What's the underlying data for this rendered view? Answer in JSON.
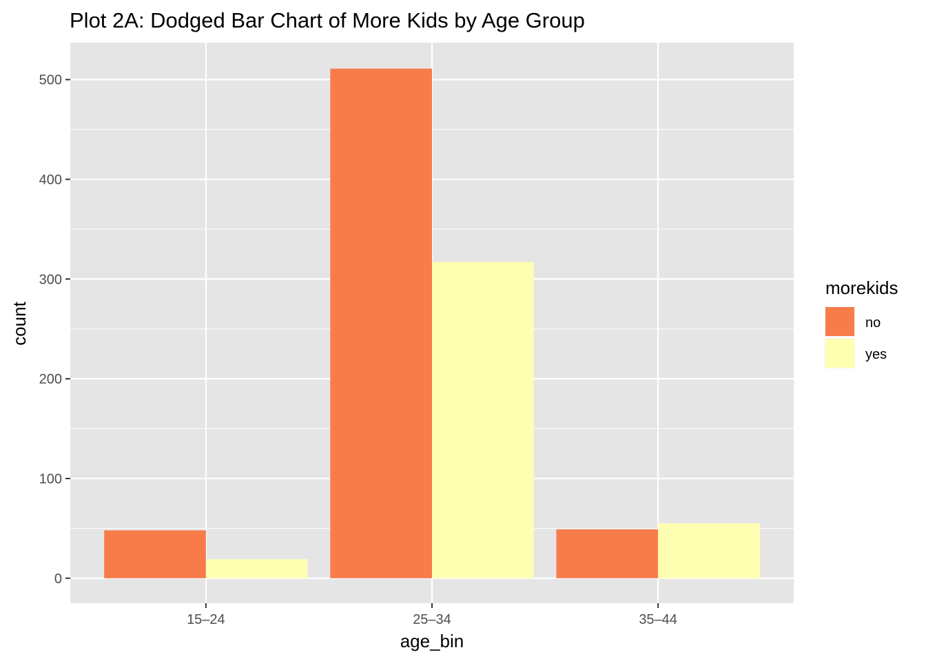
{
  "chart_data": {
    "type": "bar",
    "title": "Plot 2A: Dodged Bar Chart of More Kids by Age Group",
    "xlabel": "age_bin",
    "ylabel": "count",
    "categories": [
      "15–24",
      "25–34",
      "35–44"
    ],
    "series": [
      {
        "name": "no",
        "values": [
          48,
          511,
          49
        ],
        "color": "#F77C4A"
      },
      {
        "name": "yes",
        "values": [
          19,
          317,
          55
        ],
        "color": "#FFFFB2"
      }
    ],
    "ylim": [
      -25,
      537
    ],
    "yticks": [
      0,
      100,
      200,
      300,
      400,
      500
    ],
    "ytick_labels": [
      "0",
      "100",
      "200",
      "300",
      "400",
      "500"
    ],
    "grid": true,
    "legend": {
      "title": "morekids",
      "position": "right"
    },
    "panel_background": "#E5E5E5",
    "gridline_color": "#FFFFFF"
  }
}
